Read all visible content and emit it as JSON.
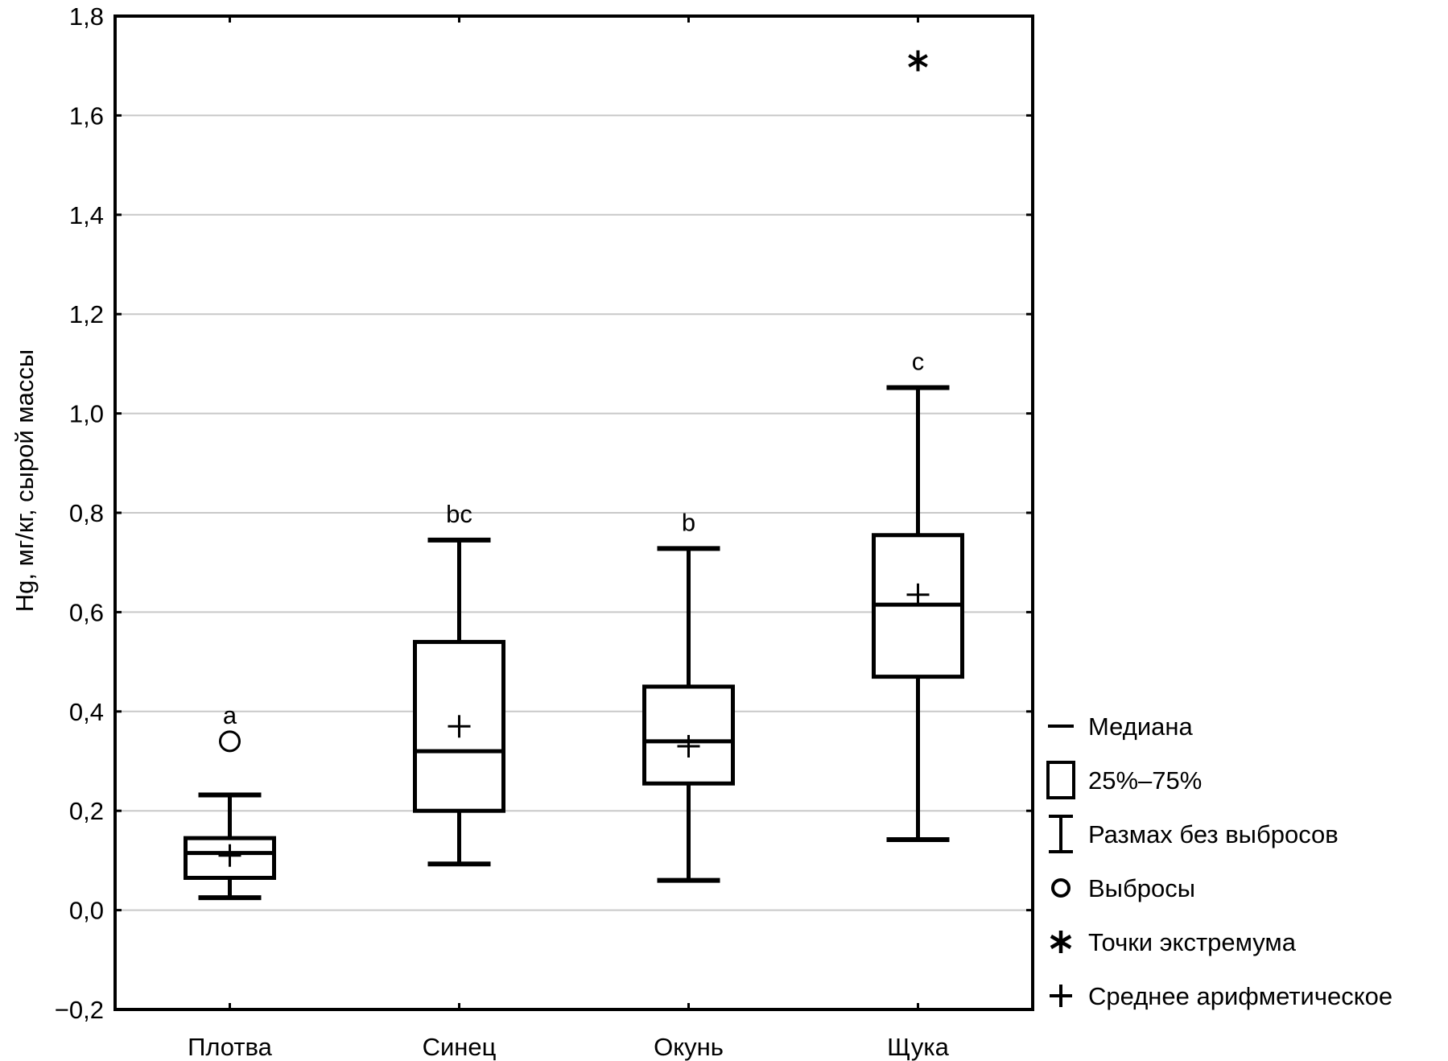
{
  "chart_data": {
    "type": "boxplot",
    "title": "",
    "xlabel": "",
    "ylabel": "Hg, мг/кг, сырой массы",
    "ylim": [
      -0.2,
      1.8
    ],
    "yticks": [
      -0.2,
      0.0,
      0.2,
      0.4,
      0.6,
      0.8,
      1.0,
      1.2,
      1.4,
      1.6,
      1.8
    ],
    "ytick_labels": [
      "−0,2",
      "0,0",
      "0,2",
      "0,4",
      "0,6",
      "0,8",
      "1,0",
      "1,2",
      "1,4",
      "1,6",
      "1,8"
    ],
    "grid": true,
    "categories": [
      "Плотва",
      "Синец",
      "Окунь",
      "Щука"
    ],
    "series": [
      {
        "name": "Плотва",
        "min": 0.025,
        "q1": 0.065,
        "median": 0.115,
        "q3": 0.145,
        "max": 0.232,
        "mean": 0.11,
        "outliers": [
          0.34
        ],
        "extremes": [],
        "group_label": "a"
      },
      {
        "name": "Синец",
        "min": 0.093,
        "q1": 0.2,
        "median": 0.32,
        "q3": 0.54,
        "max": 0.745,
        "mean": 0.37,
        "outliers": [],
        "extremes": [],
        "group_label": "bc"
      },
      {
        "name": "Окунь",
        "min": 0.06,
        "q1": 0.255,
        "median": 0.34,
        "q3": 0.45,
        "max": 0.728,
        "mean": 0.33,
        "outliers": [],
        "extremes": [],
        "group_label": "b"
      },
      {
        "name": "Щука",
        "min": 0.142,
        "q1": 0.47,
        "median": 0.615,
        "q3": 0.755,
        "max": 1.052,
        "mean": 0.635,
        "outliers": [],
        "extremes": [
          1.71
        ],
        "group_label": "c"
      }
    ],
    "legend": {
      "placement": "right",
      "items": [
        {
          "symbol": "median-line",
          "label": "Медиана"
        },
        {
          "symbol": "box",
          "label": "25%–75%"
        },
        {
          "symbol": "whisker",
          "label": "Размах без выбросов"
        },
        {
          "symbol": "circle",
          "label": "Выбросы"
        },
        {
          "symbol": "asterisk",
          "label": "Точки экстремума"
        },
        {
          "symbol": "plus",
          "label": "Среднее арифметическое"
        }
      ]
    },
    "colors": {
      "line": "#000000",
      "grid": "#c8c8c8",
      "background": "#ffffff"
    }
  }
}
